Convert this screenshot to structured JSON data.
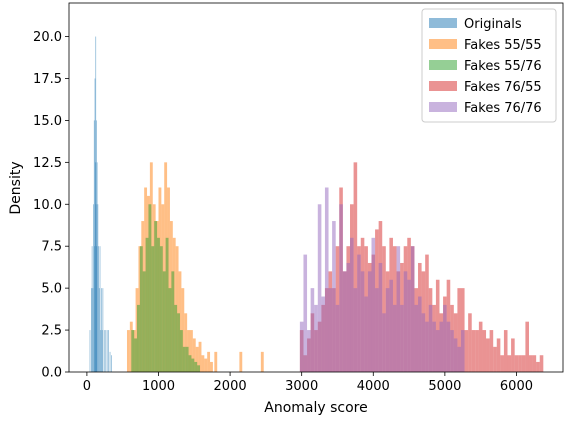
{
  "chart_data": {
    "type": "histogram",
    "xlabel": "Anomaly score",
    "ylabel": "Density",
    "xlim": [
      -250,
      6650
    ],
    "ylim": [
      0,
      22
    ],
    "xticks": [
      0,
      1000,
      2000,
      3000,
      4000,
      5000,
      6000
    ],
    "xtick_labels": [
      "0",
      "1000",
      "2000",
      "3000",
      "4000",
      "5000",
      "6000"
    ],
    "yticks": [
      0,
      2.5,
      5,
      7.5,
      10,
      12.5,
      15,
      17.5,
      20
    ],
    "ytick_labels": [
      "0.0",
      "2.5",
      "5.0",
      "7.5",
      "10.0",
      "12.5",
      "15.0",
      "17.5",
      "20.0"
    ],
    "legend_position": "top-right",
    "series": [
      {
        "name": "Originals",
        "color": "#1f77b4",
        "opacity": 0.5,
        "x": [
          40,
          60,
          70,
          80,
          90,
          100,
          105,
          110,
          115,
          120,
          125,
          130,
          135,
          140,
          150,
          160,
          170,
          180,
          190,
          200,
          210,
          220,
          240,
          260,
          280,
          300,
          320,
          340
        ],
        "y": [
          2.5,
          5.0,
          7.5,
          5.0,
          10.0,
          15.0,
          7.5,
          17.5,
          12.5,
          20.0,
          10.0,
          15.0,
          7.5,
          12.5,
          10.0,
          7.5,
          5.0,
          7.5,
          2.5,
          5.0,
          2.5,
          5.0,
          2.5,
          2.5,
          2.5,
          2.5,
          1.2,
          1.0
        ]
      },
      {
        "name": "Fakes 55/55",
        "color": "#ff7f0e",
        "opacity": 0.5,
        "x": [
          580,
          620,
          660,
          700,
          740,
          780,
          820,
          860,
          900,
          940,
          980,
          1020,
          1060,
          1100,
          1140,
          1180,
          1220,
          1260,
          1300,
          1340,
          1380,
          1420,
          1460,
          1500,
          1540,
          1580,
          1620,
          1660,
          1700,
          1740,
          1800,
          2150,
          2450
        ],
        "y": [
          2.5,
          3.0,
          2.5,
          5.0,
          7.5,
          9.0,
          11.0,
          10.5,
          12.5,
          10.0,
          9.0,
          11.0,
          10.0,
          12.5,
          11.0,
          9.0,
          8.0,
          7.5,
          6.0,
          5.0,
          3.5,
          2.5,
          2.5,
          2.0,
          1.5,
          1.8,
          1.0,
          0.8,
          1.2,
          0.6,
          1.2,
          1.2,
          1.2
        ]
      },
      {
        "name": "Fakes 55/76",
        "color": "#2ca02c",
        "opacity": 0.5,
        "x": [
          640,
          680,
          720,
          760,
          800,
          840,
          880,
          920,
          960,
          1000,
          1040,
          1080,
          1120,
          1160,
          1200,
          1240,
          1280,
          1320,
          1360,
          1400,
          1440,
          1480,
          1520,
          1560
        ],
        "y": [
          2.5,
          2.0,
          4.0,
          7.5,
          6.0,
          8.0,
          10.0,
          7.5,
          9.0,
          8.0,
          7.5,
          6.0,
          8.0,
          5.0,
          6.0,
          4.0,
          3.5,
          2.5,
          1.5,
          1.5,
          1.0,
          0.8,
          0.6,
          0.4
        ]
      },
      {
        "name": "Fakes 76/55",
        "color": "#d62728",
        "opacity": 0.5,
        "x": [
          3000,
          3050,
          3100,
          3150,
          3200,
          3250,
          3300,
          3350,
          3400,
          3450,
          3500,
          3550,
          3600,
          3650,
          3700,
          3750,
          3800,
          3850,
          3900,
          3950,
          4000,
          4050,
          4100,
          4150,
          4200,
          4250,
          4300,
          4350,
          4400,
          4450,
          4500,
          4550,
          4600,
          4650,
          4700,
          4750,
          4800,
          4850,
          4900,
          4950,
          5000,
          5050,
          5100,
          5150,
          5200,
          5250,
          5300,
          5350,
          5400,
          5450,
          5500,
          5550,
          5600,
          5650,
          5700,
          5750,
          5800,
          5850,
          5900,
          5950,
          6000,
          6050,
          6100,
          6150,
          6200,
          6250,
          6300,
          6350
        ],
        "y": [
          2.5,
          1.0,
          2.0,
          3.5,
          2.5,
          3.0,
          4.0,
          5.0,
          6.0,
          5.0,
          7.5,
          11.0,
          6.0,
          7.5,
          10.0,
          12.5,
          7.5,
          8.0,
          7.5,
          6.5,
          7.0,
          8.5,
          9.0,
          7.5,
          6.0,
          8.0,
          7.5,
          6.0,
          6.5,
          7.5,
          8.0,
          7.5,
          5.0,
          6.5,
          6.0,
          7.0,
          5.0,
          4.0,
          5.5,
          3.5,
          4.5,
          5.5,
          4.0,
          3.5,
          5.0,
          5.0,
          2.5,
          3.5,
          2.5,
          2.5,
          3.0,
          2.5,
          2.0,
          2.5,
          1.5,
          2.0,
          1.0,
          2.5,
          1.0,
          2.0,
          1.0,
          1.0,
          1.0,
          3.0,
          1.0,
          1.0,
          0.6,
          1.0
        ]
      },
      {
        "name": "Fakes 76/76",
        "color": "#9467bd",
        "opacity": 0.5,
        "x": [
          3000,
          3050,
          3100,
          3150,
          3200,
          3250,
          3300,
          3350,
          3400,
          3450,
          3500,
          3550,
          3600,
          3650,
          3700,
          3750,
          3800,
          3850,
          3900,
          3950,
          4000,
          4050,
          4100,
          4150,
          4200,
          4250,
          4300,
          4350,
          4400,
          4450,
          4500,
          4550,
          4600,
          4650,
          4700,
          4750,
          4800,
          4850,
          4900,
          4950,
          5000,
          5050,
          5100,
          5150,
          5200,
          5250
        ],
        "y": [
          3.0,
          7.0,
          2.5,
          5.0,
          4.0,
          10.0,
          4.5,
          11.0,
          5.0,
          9.0,
          4.0,
          10.0,
          6.0,
          6.5,
          8.0,
          5.0,
          7.0,
          6.0,
          4.5,
          6.0,
          8.0,
          5.0,
          6.5,
          3.5,
          5.0,
          5.5,
          4.0,
          7.5,
          4.0,
          6.0,
          5.5,
          7.5,
          4.0,
          4.5,
          3.5,
          3.0,
          4.0,
          3.0,
          2.5,
          3.0,
          4.0,
          3.0,
          2.5,
          2.0,
          1.5,
          2.5
        ]
      }
    ]
  }
}
